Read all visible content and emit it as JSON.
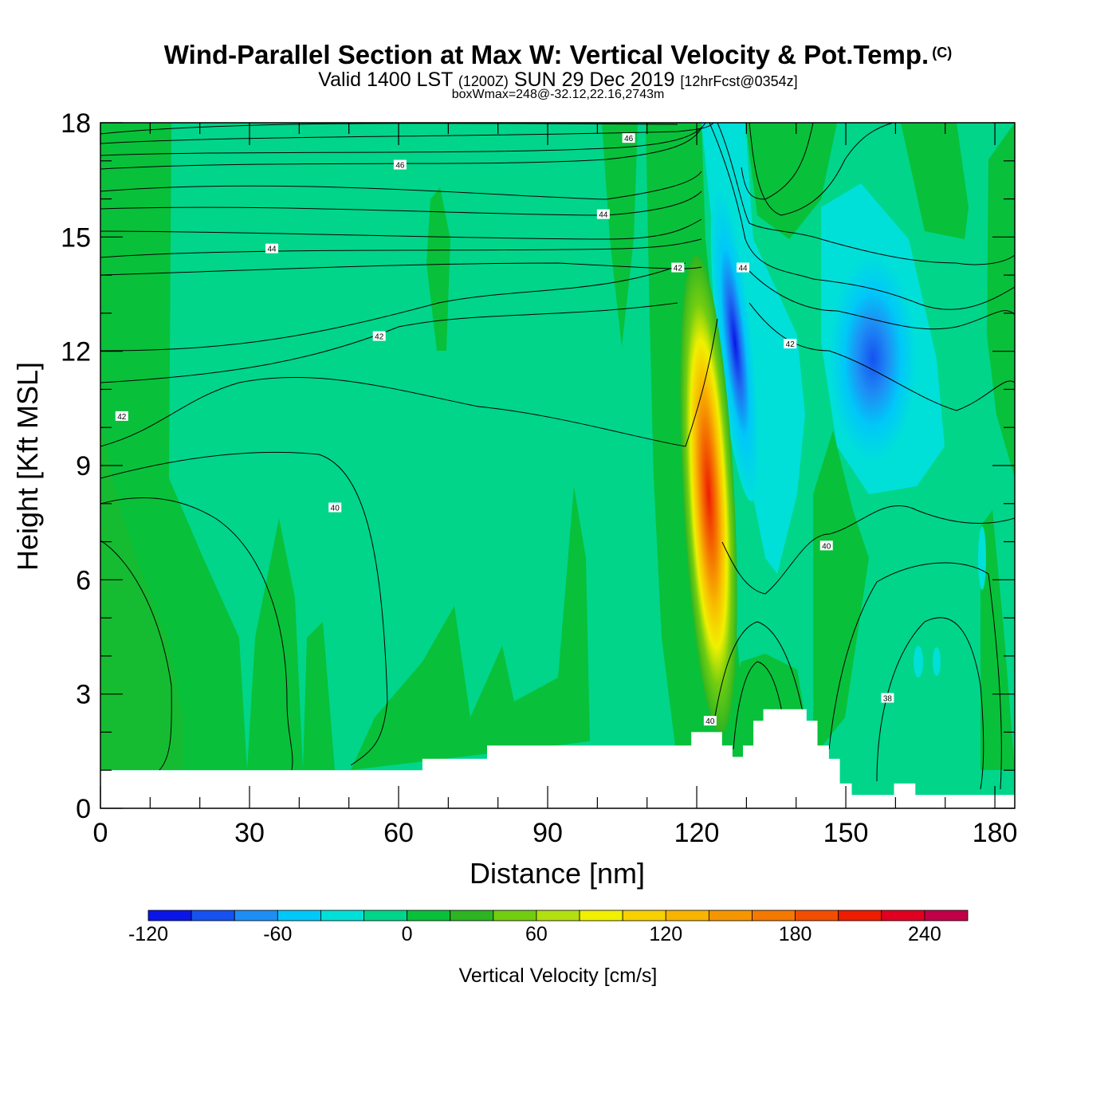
{
  "header": {
    "title": "Wind-Parallel Section at Max W: Vertical Velocity & Pot.Temp.",
    "copyright": "(C)",
    "valid_prefix": "Valid 1400 LST",
    "valid_zulu": "(1200Z)",
    "valid_date": "SUN 29 Dec 2019",
    "forecast": "[12hrFcst@0354z]",
    "box_wmax": "boxWmax=248@-32.12,22.16,2743m"
  },
  "chart_data": {
    "type": "heatmap",
    "title": "Wind-Parallel Section at Max W: Vertical Velocity & Pot.Temp.",
    "xlabel": "Distance [nm]",
    "ylabel": "Height [Kft MSL]",
    "xlim": [
      0,
      184
    ],
    "ylim": [
      0,
      18
    ],
    "xticks": [
      0,
      30,
      60,
      90,
      120,
      150,
      180
    ],
    "yticks": [
      0,
      3,
      6,
      9,
      12,
      15,
      18
    ],
    "colorbar": {
      "label": "Vertical Velocity [cm/s]",
      "ticks": [
        -120,
        -60,
        0,
        60,
        120,
        180,
        240
      ],
      "levels": [
        -120,
        -100,
        -80,
        -60,
        -40,
        -20,
        0,
        20,
        40,
        60,
        80,
        100,
        120,
        140,
        160,
        180,
        200,
        220,
        240,
        260
      ],
      "colors": [
        "#0a16e8",
        "#1652f0",
        "#1e8ef5",
        "#00c8f8",
        "#00e0d8",
        "#00d58a",
        "#09c03a",
        "#2db422",
        "#72cd10",
        "#b2e010",
        "#f0f000",
        "#f8d000",
        "#f8b400",
        "#f59600",
        "#f57800",
        "#f24e00",
        "#ee1c00",
        "#e00020",
        "#c00048"
      ]
    },
    "contour_labels": [
      {
        "value": "46",
        "x": 60.3,
        "y": 16.9
      },
      {
        "value": "46",
        "x": 106.3,
        "y": 17.6
      },
      {
        "value": "44",
        "x": 34.5,
        "y": 14.7
      },
      {
        "value": "44",
        "x": 101.2,
        "y": 15.6
      },
      {
        "value": "44",
        "x": 129.3,
        "y": 14.2
      },
      {
        "value": "42",
        "x": 116.2,
        "y": 14.2
      },
      {
        "value": "42",
        "x": 56.1,
        "y": 12.4
      },
      {
        "value": "42",
        "x": 138.8,
        "y": 12.2
      },
      {
        "value": "42",
        "x": 4.3,
        "y": 10.3
      },
      {
        "value": "40",
        "x": 47.2,
        "y": 7.9
      },
      {
        "value": "40",
        "x": 146.1,
        "y": 6.9
      },
      {
        "value": "40",
        "x": 122.7,
        "y": 2.3
      },
      {
        "value": "38",
        "x": 158.4,
        "y": 2.9
      }
    ],
    "terrain_kft": [
      {
        "x": 0,
        "y": 1.0
      },
      {
        "x": 64.8,
        "y": 1.0
      },
      {
        "x": 64.8,
        "y": 1.3
      },
      {
        "x": 77.8,
        "y": 1.3
      },
      {
        "x": 77.8,
        "y": 1.65
      },
      {
        "x": 118.9,
        "y": 1.65
      },
      {
        "x": 118.9,
        "y": 2.0
      },
      {
        "x": 125.1,
        "y": 2.0
      },
      {
        "x": 125.1,
        "y": 1.65
      },
      {
        "x": 127.2,
        "y": 1.65
      },
      {
        "x": 127.2,
        "y": 1.35
      },
      {
        "x": 129.3,
        "y": 1.35
      },
      {
        "x": 129.3,
        "y": 1.65
      },
      {
        "x": 131.4,
        "y": 1.65
      },
      {
        "x": 131.4,
        "y": 2.3
      },
      {
        "x": 133.4,
        "y": 2.3
      },
      {
        "x": 133.4,
        "y": 2.6
      },
      {
        "x": 142.1,
        "y": 2.6
      },
      {
        "x": 142.1,
        "y": 2.3
      },
      {
        "x": 144.3,
        "y": 2.3
      },
      {
        "x": 144.3,
        "y": 1.65
      },
      {
        "x": 146.6,
        "y": 1.65
      },
      {
        "x": 146.6,
        "y": 1.3
      },
      {
        "x": 148.8,
        "y": 1.3
      },
      {
        "x": 148.8,
        "y": 0.65
      },
      {
        "x": 151.2,
        "y": 0.65
      },
      {
        "x": 151.2,
        "y": 0.35
      },
      {
        "x": 159.7,
        "y": 0.35
      },
      {
        "x": 159.7,
        "y": 0.65
      },
      {
        "x": 164.0,
        "y": 0.65
      },
      {
        "x": 164.0,
        "y": 0.35
      },
      {
        "x": 184,
        "y": 0.35
      }
    ]
  }
}
